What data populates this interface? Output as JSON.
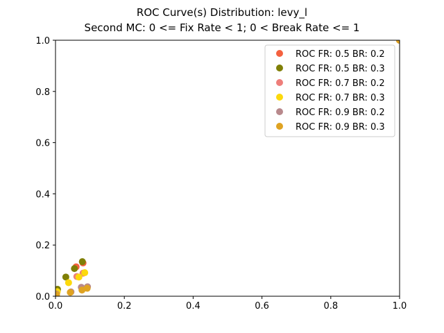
{
  "chart_data": {
    "type": "scatter",
    "title": "ROC Curve(s) Distribution: levy_l",
    "subtitle": "Second MC: 0 <= Fix Rate < 1; 0 < Break Rate <= 1",
    "xlabel": "",
    "ylabel": "",
    "xlim": [
      0,
      1
    ],
    "ylim": [
      0,
      1
    ],
    "x_ticks": [
      "0.0",
      "0.2",
      "0.4",
      "0.6",
      "0.8",
      "1.0"
    ],
    "y_ticks": [
      "0.0",
      "0.2",
      "0.4",
      "0.6",
      "0.8",
      "1.0"
    ],
    "grid": false,
    "legend_position": "top-right",
    "series": [
      {
        "name": "ROC FR: 0.5 BR: 0.2",
        "color": "#f4613f",
        "points": [
          [
            0,
            0
          ],
          [
            0.005,
            0.02
          ],
          [
            0.06,
            0.115
          ],
          [
            0.08,
            0.13
          ],
          [
            1,
            1
          ]
        ]
      },
      {
        "name": "ROC FR: 0.5 BR: 0.3",
        "color": "#7f7f06",
        "points": [
          [
            0,
            0
          ],
          [
            0.006,
            0.027
          ],
          [
            0.03,
            0.075
          ],
          [
            0.055,
            0.108
          ],
          [
            0.078,
            0.135
          ],
          [
            1,
            1
          ]
        ]
      },
      {
        "name": "ROC FR: 0.7 BR: 0.2",
        "color": "#ee7e7a",
        "points": [
          [
            0,
            0
          ],
          [
            0.004,
            0.015
          ],
          [
            0.062,
            0.077
          ],
          [
            0.08,
            0.09
          ],
          [
            1,
            1
          ]
        ]
      },
      {
        "name": "ROC FR: 0.7 BR: 0.3",
        "color": "#fcd90c",
        "points": [
          [
            0,
            0
          ],
          [
            0.005,
            0.018
          ],
          [
            0.038,
            0.053
          ],
          [
            0.068,
            0.075
          ],
          [
            0.085,
            0.092
          ],
          [
            1,
            1
          ]
        ]
      },
      {
        "name": "ROC FR: 0.9 BR: 0.2",
        "color": "#b8898c",
        "points": [
          [
            0,
            0
          ],
          [
            0.003,
            0.008
          ],
          [
            0.045,
            0.017
          ],
          [
            0.075,
            0.035
          ],
          [
            0.093,
            0.037
          ],
          [
            1,
            1
          ]
        ]
      },
      {
        "name": "ROC FR: 0.9 BR: 0.3",
        "color": "#dfa322",
        "points": [
          [
            0,
            0
          ],
          [
            0.003,
            0.006
          ],
          [
            0.043,
            0.015
          ],
          [
            0.077,
            0.024
          ],
          [
            0.092,
            0.031
          ],
          [
            1,
            1
          ]
        ]
      }
    ]
  }
}
